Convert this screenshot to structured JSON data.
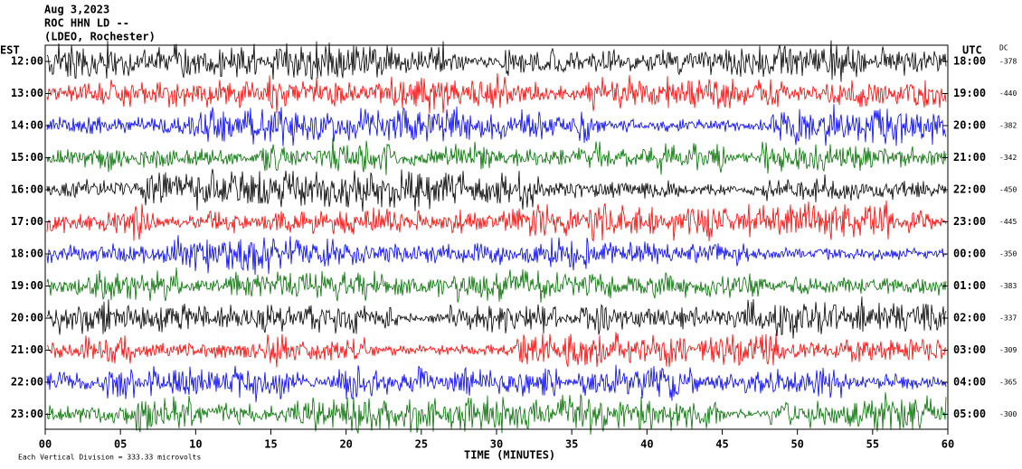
{
  "header": {
    "lines": [
      "Aug 3,2023",
      "ROC HHN LD --",
      "(LDEO, Rochester)"
    ]
  },
  "left_axis_title": "EST",
  "right_axis_title": "UTC",
  "dc_title": "DC",
  "rows": [
    {
      "est": "12:00",
      "utc": "18:00",
      "dc": -378,
      "color": "#000000"
    },
    {
      "est": "13:00",
      "utc": "19:00",
      "dc": -440,
      "color": "#ff0000"
    },
    {
      "est": "14:00",
      "utc": "20:00",
      "dc": -382,
      "color": "#0000ff"
    },
    {
      "est": "15:00",
      "utc": "21:00",
      "dc": -342,
      "color": "#007000"
    },
    {
      "est": "16:00",
      "utc": "22:00",
      "dc": -450,
      "color": "#000000"
    },
    {
      "est": "17:00",
      "utc": "23:00",
      "dc": -445,
      "color": "#ff0000"
    },
    {
      "est": "18:00",
      "utc": "00:00",
      "dc": -350,
      "color": "#0000ff"
    },
    {
      "est": "19:00",
      "utc": "01:00",
      "dc": -383,
      "color": "#007000"
    },
    {
      "est": "20:00",
      "utc": "02:00",
      "dc": -337,
      "color": "#000000"
    },
    {
      "est": "21:00",
      "utc": "03:00",
      "dc": -309,
      "color": "#ff0000"
    },
    {
      "est": "22:00",
      "utc": "04:00",
      "dc": -365,
      "color": "#0000ff"
    },
    {
      "est": "23:00",
      "utc": "05:00",
      "dc": -300,
      "color": "#007000"
    }
  ],
  "x_axis": {
    "xlim": [
      0,
      60
    ],
    "ticks": [
      {
        "value": 0,
        "label": "00"
      },
      {
        "value": 5,
        "label": "05"
      },
      10,
      15,
      20,
      25,
      30,
      35,
      40,
      45,
      50,
      55,
      60
    ],
    "label": "TIME (MINUTES)"
  },
  "footer": "Each Vertical Division =  333.33 microvolts"
}
